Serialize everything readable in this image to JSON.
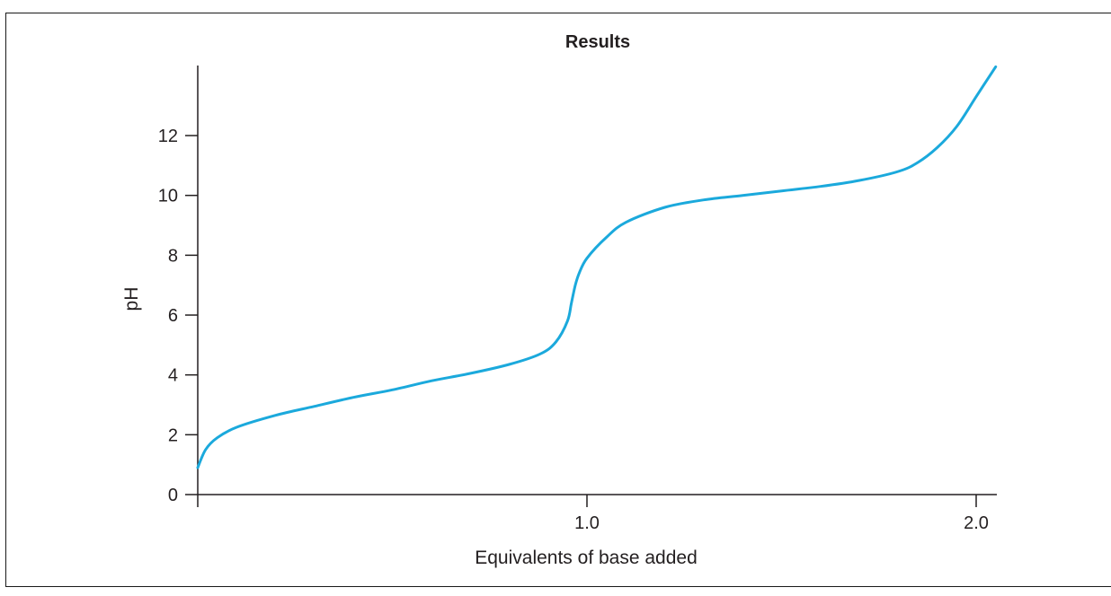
{
  "chart_data": {
    "type": "line",
    "title": "Results",
    "xlabel": "Equivalents of base added",
    "ylabel": "pH",
    "xlim": [
      0,
      2.06
    ],
    "ylim": [
      0,
      14.3
    ],
    "x_ticks": [
      0,
      1.0,
      2.0
    ],
    "x_tick_labels": [
      "",
      "1.0",
      "2.0"
    ],
    "y_ticks": [
      0,
      2,
      4,
      6,
      8,
      10,
      12
    ],
    "y_tick_labels": [
      "0",
      "2",
      "4",
      "6",
      "8",
      "10",
      "12"
    ],
    "grid": false,
    "colors": {
      "line": "#1ba9dc",
      "axis": "#231f20"
    },
    "series": [
      {
        "x": [
          0.0,
          0.02,
          0.05,
          0.1,
          0.2,
          0.3,
          0.4,
          0.5,
          0.6,
          0.7,
          0.8,
          0.88,
          0.92,
          0.95,
          0.96,
          0.97,
          0.98,
          1.0,
          1.05,
          1.1,
          1.2,
          1.3,
          1.4,
          1.5,
          1.6,
          1.7,
          1.8,
          1.85,
          1.9,
          1.95,
          2.0,
          2.05
        ],
        "y": [
          0.9,
          1.5,
          1.9,
          2.25,
          2.65,
          2.95,
          3.25,
          3.5,
          3.8,
          4.05,
          4.35,
          4.7,
          5.1,
          5.8,
          6.4,
          7.0,
          7.4,
          7.9,
          8.6,
          9.1,
          9.6,
          9.85,
          10.0,
          10.15,
          10.3,
          10.5,
          10.8,
          11.1,
          11.6,
          12.3,
          13.3,
          14.3
        ]
      }
    ]
  }
}
